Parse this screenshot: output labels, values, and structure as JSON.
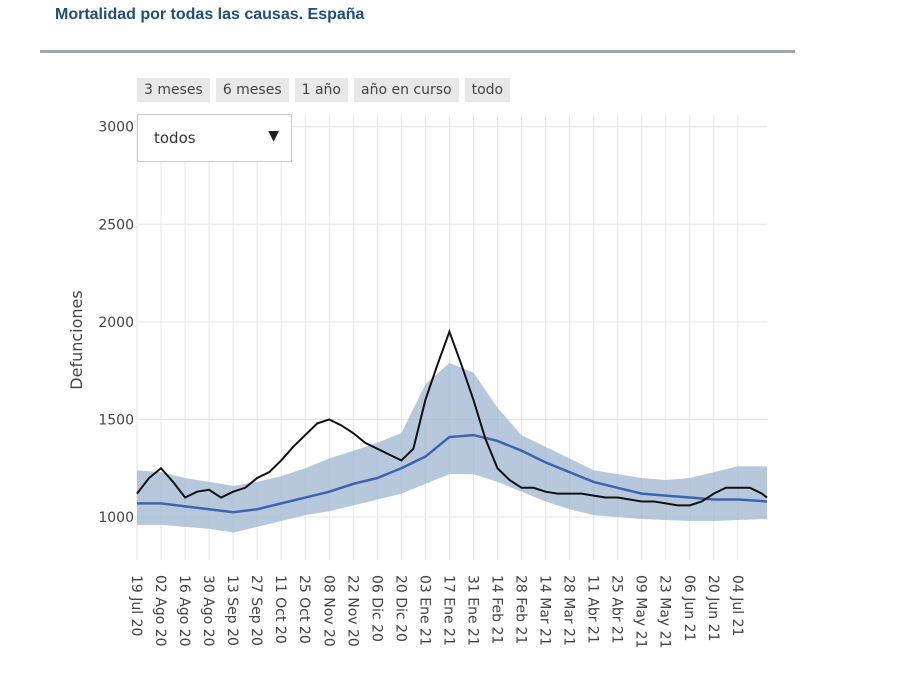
{
  "header": {
    "title": "Mortalidad por todas las causas. España"
  },
  "range_buttons": [
    "3 meses",
    "6 meses",
    "1 año",
    "año en curso",
    "todo"
  ],
  "dropdown": {
    "value": "todos",
    "arrow": "▼"
  },
  "colors": {
    "observed": "#111111",
    "expected": "#3a66b0",
    "band": "#9fb4d0",
    "grid": "#e6e6e6"
  },
  "chart_data": {
    "type": "line",
    "title": "",
    "xlabel": "",
    "ylabel": "Defunciones",
    "ylim": [
      780,
      3060
    ],
    "yticks": [
      1000,
      1500,
      2000,
      2500,
      3000
    ],
    "grid": true,
    "x_start": "2020-07-19",
    "x_end": "2021-07-21",
    "xtick_labels": [
      "19 Jul 20",
      "02 Ago 20",
      "16 Ago 20",
      "30 Ago 20",
      "13 Sep 20",
      "27 Sep 20",
      "11 Oct 20",
      "25 Oct 20",
      "08 Nov 20",
      "22 Nov 20",
      "06 Dic 20",
      "20 Dic 20",
      "03 Ene 21",
      "17 Ene 21",
      "31 Ene 21",
      "14 Feb 21",
      "28 Feb 21",
      "14 Mar 21",
      "28 Mar 21",
      "11 Abr 21",
      "25 Abr 21",
      "09 May 21",
      "23 May 21",
      "06 Jun 21",
      "20 Jun 21",
      "04 Jul 21"
    ],
    "series": [
      {
        "name": "",
        "role": "observed",
        "x": [
          "2020-07-19",
          "2020-07-26",
          "2020-08-02",
          "2020-08-09",
          "2020-08-16",
          "2020-08-23",
          "2020-08-30",
          "2020-09-06",
          "2020-09-13",
          "2020-09-20",
          "2020-09-27",
          "2020-10-04",
          "2020-10-11",
          "2020-10-18",
          "2020-10-25",
          "2020-11-01",
          "2020-11-08",
          "2020-11-15",
          "2020-11-22",
          "2020-11-29",
          "2020-12-06",
          "2020-12-13",
          "2020-12-20",
          "2020-12-27",
          "2021-01-03",
          "2021-01-10",
          "2021-01-17",
          "2021-01-24",
          "2021-01-31",
          "2021-02-07",
          "2021-02-14",
          "2021-02-21",
          "2021-02-28",
          "2021-03-07",
          "2021-03-14",
          "2021-03-21",
          "2021-03-28",
          "2021-04-04",
          "2021-04-11",
          "2021-04-18",
          "2021-04-25",
          "2021-05-02",
          "2021-05-09",
          "2021-05-16",
          "2021-05-23",
          "2021-05-30",
          "2021-06-06",
          "2021-06-13",
          "2021-06-20",
          "2021-06-27",
          "2021-07-04",
          "2021-07-11",
          "2021-07-18",
          "2021-07-21"
        ],
        "y": [
          1120,
          1200,
          1250,
          1180,
          1100,
          1130,
          1140,
          1100,
          1130,
          1150,
          1200,
          1230,
          1290,
          1360,
          1420,
          1480,
          1500,
          1470,
          1430,
          1380,
          1350,
          1320,
          1290,
          1350,
          1600,
          1780,
          1950,
          1780,
          1600,
          1400,
          1250,
          1190,
          1150,
          1150,
          1130,
          1120,
          1120,
          1120,
          1110,
          1100,
          1100,
          1090,
          1080,
          1080,
          1070,
          1060,
          1060,
          1080,
          1120,
          1150,
          1150,
          1150,
          1120,
          1100
        ]
      },
      {
        "name": "",
        "role": "expected",
        "x": [
          "2020-07-19",
          "2020-08-02",
          "2020-08-16",
          "2020-08-30",
          "2020-09-13",
          "2020-09-27",
          "2020-10-11",
          "2020-10-25",
          "2020-11-08",
          "2020-11-22",
          "2020-12-06",
          "2020-12-20",
          "2021-01-03",
          "2021-01-17",
          "2021-01-31",
          "2021-02-14",
          "2021-02-28",
          "2021-03-14",
          "2021-03-28",
          "2021-04-11",
          "2021-04-25",
          "2021-05-09",
          "2021-05-23",
          "2021-06-06",
          "2021-06-20",
          "2021-07-04",
          "2021-07-21"
        ],
        "y": [
          1070,
          1070,
          1055,
          1040,
          1025,
          1040,
          1070,
          1100,
          1130,
          1170,
          1200,
          1250,
          1310,
          1410,
          1420,
          1390,
          1340,
          1280,
          1230,
          1180,
          1150,
          1120,
          1110,
          1100,
          1090,
          1090,
          1080
        ]
      },
      {
        "name": "",
        "role": "band",
        "x": [
          "2020-07-19",
          "2020-08-02",
          "2020-08-16",
          "2020-08-30",
          "2020-09-13",
          "2020-09-27",
          "2020-10-11",
          "2020-10-25",
          "2020-11-08",
          "2020-11-22",
          "2020-12-06",
          "2020-12-20",
          "2021-01-03",
          "2021-01-17",
          "2021-01-31",
          "2021-02-14",
          "2021-02-28",
          "2021-03-14",
          "2021-03-28",
          "2021-04-11",
          "2021-04-25",
          "2021-05-09",
          "2021-05-23",
          "2021-06-06",
          "2021-06-20",
          "2021-07-04",
          "2021-07-21"
        ],
        "lower": [
          960,
          960,
          950,
          940,
          920,
          950,
          980,
          1010,
          1030,
          1060,
          1090,
          1120,
          1170,
          1220,
          1220,
          1180,
          1130,
          1080,
          1040,
          1010,
          1000,
          990,
          985,
          980,
          980,
          985,
          990
        ],
        "upper": [
          1240,
          1230,
          1200,
          1180,
          1160,
          1180,
          1210,
          1250,
          1300,
          1340,
          1380,
          1430,
          1680,
          1790,
          1740,
          1560,
          1420,
          1360,
          1300,
          1240,
          1220,
          1200,
          1190,
          1200,
          1230,
          1260,
          1260
        ]
      }
    ]
  }
}
